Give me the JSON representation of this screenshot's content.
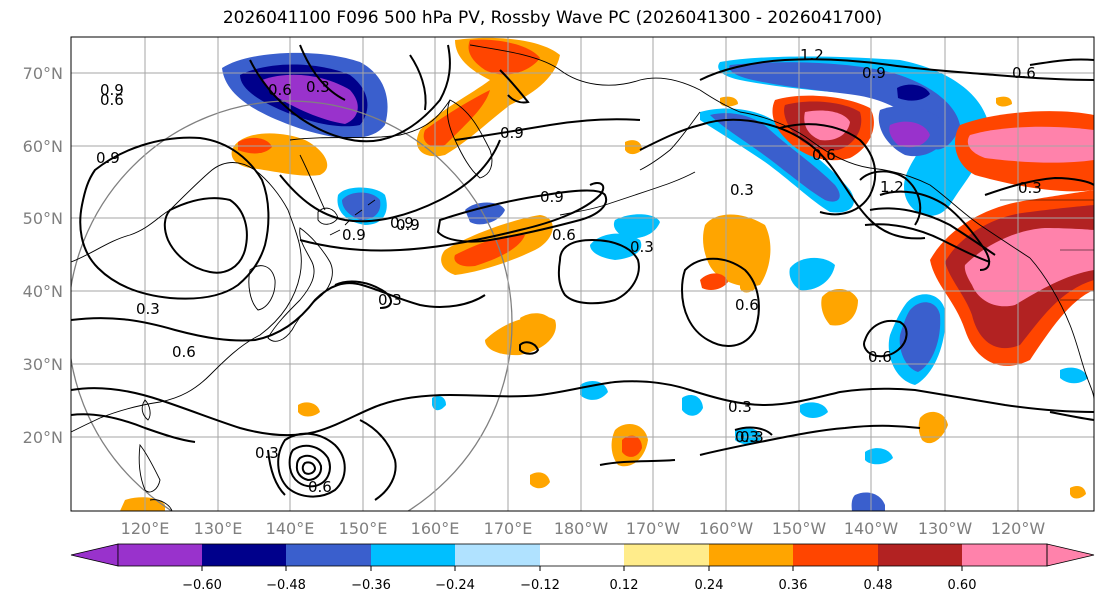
{
  "title": "2026041100 F096 500 hPa PV, Rossby Wave PC (2026041300 - 2026041700)",
  "axes": {
    "lat_labels": [
      "70°N",
      "60°N",
      "50°N",
      "40°N",
      "30°N",
      "20°N"
    ],
    "lon_labels": [
      "120°E",
      "130°E",
      "140°E",
      "150°E",
      "160°E",
      "170°E",
      "180°W",
      "170°W",
      "160°W",
      "150°W",
      "140°W",
      "130°W",
      "120°W"
    ]
  },
  "colorbar": {
    "tick_labels": [
      "−0.60",
      "−0.48",
      "−0.36",
      "−0.24",
      "−0.12",
      "0.12",
      "0.24",
      "0.36",
      "0.48",
      "0.60"
    ],
    "colors": [
      "#9932cc",
      "#00008b",
      "#3a5fcd",
      "#00bfff",
      "#b0e2ff",
      "#ffffff",
      "#ffec8b",
      "#ffa500",
      "#ff4500",
      "#b22222",
      "#ff82ab"
    ]
  },
  "contour_labels": [
    "1.2",
    "0.9",
    "0.6",
    "0.3",
    "0.6",
    "0.9",
    "0.9",
    "0.9",
    "0.6",
    "0.9",
    "0.3",
    "0.3",
    "0.6",
    "0.3",
    "0.3",
    "0.6",
    "0.6",
    "0.3",
    "0.3",
    "0.6",
    "0.9",
    "1.2",
    "0.3",
    "0.3",
    "0.6",
    "0.9",
    "0.6",
    "0.9",
    "0.3"
  ]
}
